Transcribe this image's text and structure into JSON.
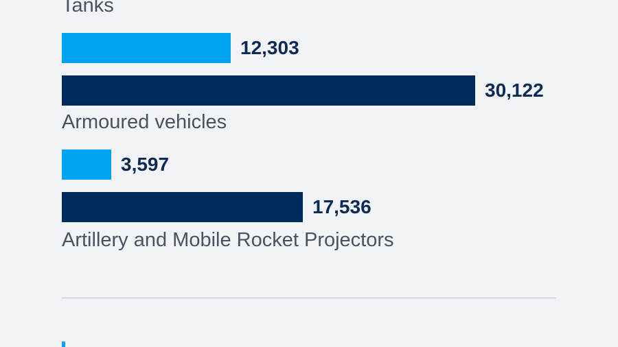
{
  "chart_data": {
    "type": "bar",
    "orientation": "horizontal",
    "categories": [
      "Tanks",
      "Armoured vehicles",
      "Artillery and Mobile Rocket Projectors"
    ],
    "series": [
      {
        "values": [
          12303,
          3597,
          null
        ],
        "color": "#00a3ef"
      },
      {
        "values": [
          30122,
          17536,
          null
        ],
        "color": "#002b5c"
      }
    ],
    "value_labels": [
      [
        "12,303",
        "3,597",
        ""
      ],
      [
        "30,122",
        "17,536",
        ""
      ]
    ],
    "xlim": [
      0,
      36000
    ],
    "grid": false
  },
  "colors": {
    "background": "#f1f3f6",
    "accent": "#00a3ef",
    "dark": "#002b5c",
    "label_text": "#4a5261",
    "value_text": "#0d2a55"
  }
}
